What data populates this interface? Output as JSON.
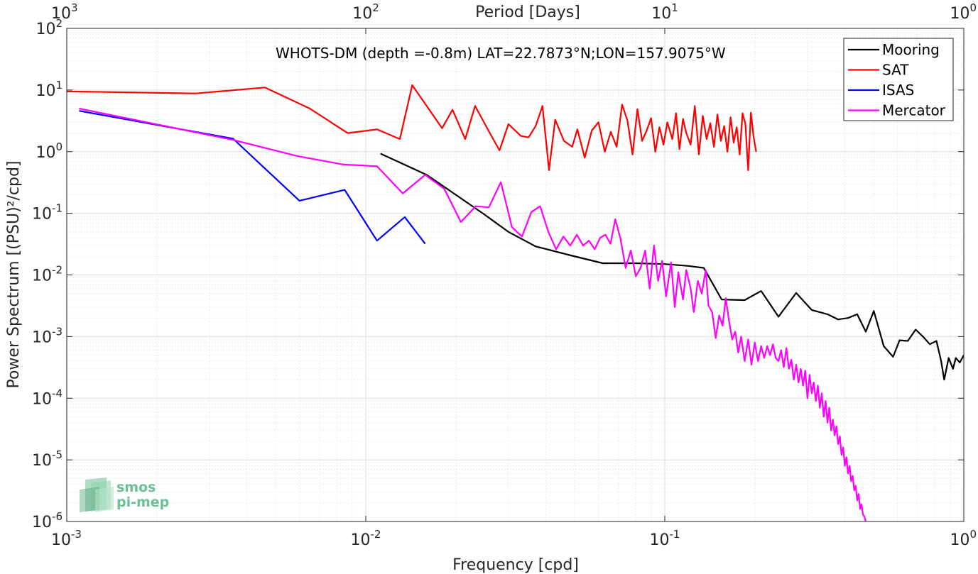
{
  "chart_data": {
    "type": "line",
    "scale": {
      "x": "log",
      "y": "log"
    },
    "xlabel": "Frequency [cpd]",
    "ylabel": "Power Spectrum [(PSU)²/cpd]",
    "top_xlabel": "Period [Days]",
    "annotation": "WHOTS-DM (depth =-0.8m) LAT=22.7873°N;LON=157.9075°W",
    "xlim": [
      0.001,
      1
    ],
    "ylim": [
      1e-06,
      100
    ],
    "grid": true,
    "minor_grid": true,
    "legend_position": "top-right",
    "logo": {
      "line1": "smos",
      "line2": "pi-mep"
    },
    "x_ticks": [
      {
        "value": 0.001,
        "base": "10",
        "exp": "-3"
      },
      {
        "value": 0.01,
        "base": "10",
        "exp": "-2"
      },
      {
        "value": 0.1,
        "base": "10",
        "exp": "-1"
      },
      {
        "value": 1,
        "base": "10",
        "exp": "0"
      }
    ],
    "top_ticks": [
      {
        "freq": 0.001,
        "base": "10",
        "exp": "3"
      },
      {
        "freq": 0.01,
        "base": "10",
        "exp": "2"
      },
      {
        "freq": 0.1,
        "base": "10",
        "exp": "1"
      },
      {
        "freq": 1,
        "base": "10",
        "exp": "0"
      }
    ],
    "y_ticks": [
      {
        "value": 1e-06,
        "base": "10",
        "exp": "-6"
      },
      {
        "value": 1e-05,
        "base": "10",
        "exp": "-5"
      },
      {
        "value": 0.0001,
        "base": "10",
        "exp": "-4"
      },
      {
        "value": 0.001,
        "base": "10",
        "exp": "-3"
      },
      {
        "value": 0.01,
        "base": "10",
        "exp": "-2"
      },
      {
        "value": 0.1,
        "base": "10",
        "exp": "-1"
      },
      {
        "value": 1,
        "base": "10",
        "exp": "0"
      },
      {
        "value": 10,
        "base": "10",
        "exp": "1"
      },
      {
        "value": 100,
        "base": "10",
        "exp": "2"
      }
    ],
    "series": [
      {
        "name": "Mooring",
        "color": "#000000",
        "points": [
          [
            0.0112,
            0.93
          ],
          [
            0.016,
            0.42
          ],
          [
            0.02,
            0.2
          ],
          [
            0.025,
            0.095
          ],
          [
            0.03,
            0.05
          ],
          [
            0.037,
            0.029
          ],
          [
            0.048,
            0.021
          ],
          [
            0.062,
            0.0155
          ],
          [
            0.08,
            0.0155
          ],
          [
            0.1,
            0.015
          ],
          [
            0.12,
            0.014
          ],
          [
            0.135,
            0.013
          ],
          [
            0.155,
            0.004
          ],
          [
            0.185,
            0.0039
          ],
          [
            0.21,
            0.0055
          ],
          [
            0.24,
            0.0021
          ],
          [
            0.275,
            0.0051
          ],
          [
            0.31,
            0.0027
          ],
          [
            0.35,
            0.0023
          ],
          [
            0.38,
            0.0019
          ],
          [
            0.41,
            0.002
          ],
          [
            0.44,
            0.0023
          ],
          [
            0.47,
            0.0012
          ],
          [
            0.5,
            0.0026
          ],
          [
            0.54,
            0.0007
          ],
          [
            0.58,
            0.00047
          ],
          [
            0.61,
            0.00087
          ],
          [
            0.65,
            0.00085
          ],
          [
            0.69,
            0.0013
          ],
          [
            0.73,
            0.001
          ],
          [
            0.77,
            0.00075
          ],
          [
            0.81,
            0.00085
          ],
          [
            0.84,
            0.0004
          ],
          [
            0.86,
            0.0002
          ],
          [
            0.89,
            0.00045
          ],
          [
            0.92,
            0.0003
          ],
          [
            0.94,
            0.00045
          ],
          [
            0.97,
            0.00038
          ],
          [
            1.0,
            0.0005
          ]
        ]
      },
      {
        "name": "SAT",
        "color": "#ff0000",
        "points": [
          [
            0.001,
            9.5
          ],
          [
            0.0027,
            8.8
          ],
          [
            0.0046,
            11.0
          ],
          [
            0.0065,
            5.0
          ],
          [
            0.0087,
            2.0
          ],
          [
            0.0109,
            2.3
          ],
          [
            0.013,
            1.6
          ],
          [
            0.0143,
            12.0
          ],
          [
            0.018,
            2.4
          ],
          [
            0.0195,
            4.8
          ],
          [
            0.0215,
            1.6
          ],
          [
            0.0232,
            5.5
          ],
          [
            0.026,
            2.0
          ],
          [
            0.028,
            1.05
          ],
          [
            0.03,
            2.8
          ],
          [
            0.033,
            1.8
          ],
          [
            0.035,
            1.7
          ],
          [
            0.037,
            2.6
          ],
          [
            0.039,
            5.5
          ],
          [
            0.041,
            0.5
          ],
          [
            0.043,
            3.3
          ],
          [
            0.046,
            1.5
          ],
          [
            0.049,
            1.2
          ],
          [
            0.051,
            2.3
          ],
          [
            0.054,
            0.8
          ],
          [
            0.057,
            2.2
          ],
          [
            0.06,
            3.0
          ],
          [
            0.063,
            1.0
          ],
          [
            0.066,
            2.1
          ],
          [
            0.069,
            1.2
          ],
          [
            0.072,
            5.8
          ],
          [
            0.075,
            3.2
          ],
          [
            0.078,
            0.9
          ],
          [
            0.081,
            4.9
          ],
          [
            0.084,
            1.5
          ],
          [
            0.087,
            2.2
          ],
          [
            0.09,
            3.5
          ],
          [
            0.093,
            1.0
          ],
          [
            0.096,
            2.5
          ],
          [
            0.099,
            1.3
          ],
          [
            0.102,
            3.0
          ],
          [
            0.106,
            1.6
          ],
          [
            0.109,
            4.2
          ],
          [
            0.112,
            1.1
          ],
          [
            0.115,
            3.4
          ],
          [
            0.118,
            2.0
          ],
          [
            0.122,
            1.3
          ],
          [
            0.126,
            5.5
          ],
          [
            0.13,
            0.9
          ],
          [
            0.134,
            3.8
          ],
          [
            0.138,
            1.6
          ],
          [
            0.142,
            2.9
          ],
          [
            0.146,
            1.2
          ],
          [
            0.15,
            4.0
          ],
          [
            0.154,
            1.5
          ],
          [
            0.158,
            2.6
          ],
          [
            0.162,
            1.0
          ],
          [
            0.166,
            3.6
          ],
          [
            0.17,
            1.4
          ],
          [
            0.174,
            2.5
          ],
          [
            0.178,
            0.9
          ],
          [
            0.182,
            4.2
          ],
          [
            0.186,
            2.8
          ],
          [
            0.19,
            0.5
          ],
          [
            0.194,
            4.3
          ],
          [
            0.198,
            1.8
          ],
          [
            0.202,
            1.0
          ]
        ]
      },
      {
        "name": "ISAS",
        "color": "#0000ff",
        "points": [
          [
            0.0011,
            4.6
          ],
          [
            0.0036,
            1.62
          ],
          [
            0.006,
            0.16
          ],
          [
            0.0085,
            0.24
          ],
          [
            0.0109,
            0.036
          ],
          [
            0.0135,
            0.087
          ],
          [
            0.0158,
            0.032
          ]
        ]
      },
      {
        "name": "Mercator",
        "color": "#ff00ff",
        "points": [
          [
            0.0011,
            5.0
          ],
          [
            0.0036,
            1.55
          ],
          [
            0.0059,
            0.85
          ],
          [
            0.0084,
            0.62
          ],
          [
            0.0109,
            0.58
          ],
          [
            0.0133,
            0.21
          ],
          [
            0.0158,
            0.42
          ],
          [
            0.0183,
            0.25
          ],
          [
            0.0208,
            0.072
          ],
          [
            0.0233,
            0.13
          ],
          [
            0.0258,
            0.125
          ],
          [
            0.0283,
            0.32
          ],
          [
            0.0308,
            0.06
          ],
          [
            0.0333,
            0.042
          ],
          [
            0.0358,
            0.105
          ],
          [
            0.0383,
            0.13
          ],
          [
            0.0408,
            0.05
          ],
          [
            0.0433,
            0.026
          ],
          [
            0.0458,
            0.042
          ],
          [
            0.0483,
            0.03
          ],
          [
            0.0508,
            0.045
          ],
          [
            0.0533,
            0.03
          ],
          [
            0.0558,
            0.036
          ],
          [
            0.0583,
            0.026
          ],
          [
            0.0608,
            0.04
          ],
          [
            0.0633,
            0.045
          ],
          [
            0.0658,
            0.032
          ],
          [
            0.0683,
            0.08
          ],
          [
            0.071,
            0.04
          ],
          [
            0.074,
            0.013
          ],
          [
            0.077,
            0.025
          ],
          [
            0.08,
            0.0095
          ],
          [
            0.083,
            0.013
          ],
          [
            0.086,
            0.025
          ],
          [
            0.089,
            0.006
          ],
          [
            0.092,
            0.03
          ],
          [
            0.095,
            0.008
          ],
          [
            0.098,
            0.017
          ],
          [
            0.101,
            0.0045
          ],
          [
            0.105,
            0.016
          ],
          [
            0.108,
            0.003
          ],
          [
            0.111,
            0.011
          ],
          [
            0.115,
            0.004
          ],
          [
            0.118,
            0.012
          ],
          [
            0.122,
            0.006
          ],
          [
            0.125,
            0.0025
          ],
          [
            0.129,
            0.008
          ],
          [
            0.133,
            0.005
          ],
          [
            0.137,
            0.012
          ],
          [
            0.14,
            0.0032
          ],
          [
            0.144,
            0.0025
          ],
          [
            0.148,
            0.00095
          ],
          [
            0.152,
            0.0022
          ],
          [
            0.156,
            0.0015
          ],
          [
            0.16,
            0.0042
          ],
          [
            0.164,
            0.0018
          ],
          [
            0.168,
            0.0009
          ],
          [
            0.172,
            0.0012
          ],
          [
            0.176,
            0.00055
          ],
          [
            0.18,
            0.001
          ],
          [
            0.185,
            0.0004
          ],
          [
            0.19,
            0.0009
          ],
          [
            0.195,
            0.00035
          ],
          [
            0.2,
            0.0008
          ],
          [
            0.205,
            0.0004
          ],
          [
            0.21,
            0.0007
          ],
          [
            0.215,
            0.00045
          ],
          [
            0.22,
            0.0007
          ],
          [
            0.225,
            0.0005
          ],
          [
            0.23,
            0.00075
          ],
          [
            0.235,
            0.00045
          ],
          [
            0.24,
            0.0004
          ],
          [
            0.245,
            0.0006
          ],
          [
            0.25,
            0.00032
          ],
          [
            0.255,
            0.00065
          ],
          [
            0.26,
            0.0003
          ],
          [
            0.265,
            0.00042
          ],
          [
            0.27,
            0.0002
          ],
          [
            0.275,
            0.00035
          ],
          [
            0.28,
            0.00018
          ],
          [
            0.285,
            0.0003
          ],
          [
            0.29,
            0.00016
          ],
          [
            0.295,
            0.00028
          ],
          [
            0.3,
            0.0001
          ],
          [
            0.305,
            0.00024
          ],
          [
            0.31,
            0.00012
          ],
          [
            0.315,
            0.00018
          ],
          [
            0.32,
            9e-05
          ],
          [
            0.325,
            0.00016
          ],
          [
            0.33,
            7e-05
          ],
          [
            0.335,
            0.00012
          ],
          [
            0.34,
            5e-05
          ],
          [
            0.345,
            9e-05
          ],
          [
            0.35,
            4e-05
          ],
          [
            0.355,
            7e-05
          ],
          [
            0.36,
            3e-05
          ],
          [
            0.365,
            4.5e-05
          ],
          [
            0.37,
            2.5e-05
          ],
          [
            0.375,
            3.5e-05
          ],
          [
            0.38,
            1.8e-05
          ],
          [
            0.385,
            2.4e-05
          ],
          [
            0.39,
            1.2e-05
          ],
          [
            0.395,
            1.6e-05
          ],
          [
            0.4,
            8e-06
          ],
          [
            0.405,
            1.1e-05
          ],
          [
            0.41,
            6e-06
          ],
          [
            0.415,
            8e-06
          ],
          [
            0.42,
            4.5e-06
          ],
          [
            0.425,
            5.5e-06
          ],
          [
            0.43,
            3.2e-06
          ],
          [
            0.435,
            3.8e-06
          ],
          [
            0.44,
            2.2e-06
          ],
          [
            0.445,
            2.8e-06
          ],
          [
            0.45,
            1.6e-06
          ],
          [
            0.455,
            1.9e-06
          ],
          [
            0.46,
            1.3e-06
          ],
          [
            0.465,
            1.2e-06
          ],
          [
            0.47,
            1e-06
          ]
        ]
      }
    ]
  }
}
